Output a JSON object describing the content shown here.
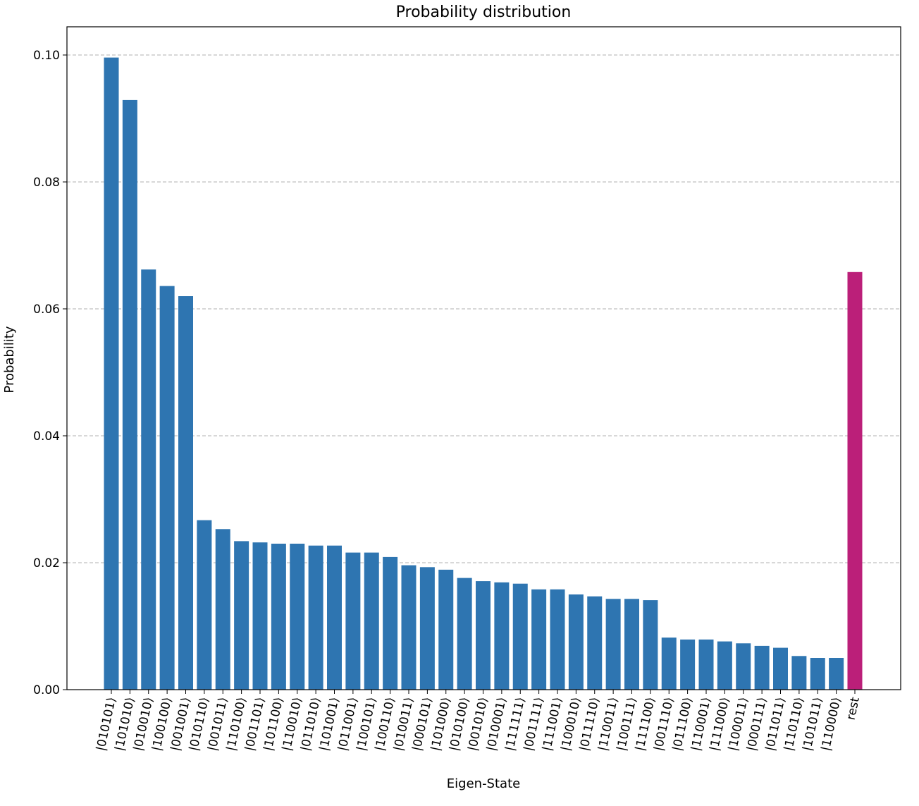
{
  "chart_data": {
    "type": "bar",
    "title": "Probability distribution",
    "xlabel": "Eigen-State",
    "ylabel": "Probability",
    "ylim": [
      0,
      0.1045
    ],
    "yticks": [
      "0.00",
      "0.02",
      "0.04",
      "0.06",
      "0.08",
      "0.10"
    ],
    "grid": "horizontal-dashed",
    "categories": [
      "|010101⟩",
      "|101010⟩",
      "|010010⟩",
      "|100100⟩",
      "|001001⟩",
      "|010110⟩",
      "|001011⟩",
      "|110100⟩",
      "|001101⟩",
      "|101100⟩",
      "|110010⟩",
      "|011010⟩",
      "|101001⟩",
      "|011001⟩",
      "|100101⟩",
      "|100110⟩",
      "|010011⟩",
      "|000101⟩",
      "|101000⟩",
      "|010100⟩",
      "|001010⟩",
      "|010001⟩",
      "|111111⟩",
      "|001111⟩",
      "|111001⟩",
      "|100010⟩",
      "|011110⟩",
      "|110011⟩",
      "|100111⟩",
      "|111100⟩",
      "|001110⟩",
      "|011100⟩",
      "|110001⟩",
      "|111000⟩",
      "|100011⟩",
      "|000111⟩",
      "|011011⟩",
      "|110110⟩",
      "|101011⟩",
      "|110000⟩",
      "rest"
    ],
    "values": [
      0.0996,
      0.0929,
      0.0662,
      0.0636,
      0.062,
      0.0267,
      0.0253,
      0.0234,
      0.0232,
      0.023,
      0.023,
      0.0227,
      0.0227,
      0.0216,
      0.0216,
      0.0209,
      0.0196,
      0.0193,
      0.0189,
      0.0176,
      0.0171,
      0.0169,
      0.0167,
      0.0158,
      0.0158,
      0.015,
      0.0147,
      0.0143,
      0.0143,
      0.0141,
      0.0082,
      0.0079,
      0.0079,
      0.0076,
      0.0073,
      0.0069,
      0.0066,
      0.0053,
      0.005,
      0.005,
      0.0658
    ],
    "colors": {
      "default": "#2e75b1",
      "rest": "#bb1f79"
    }
  }
}
